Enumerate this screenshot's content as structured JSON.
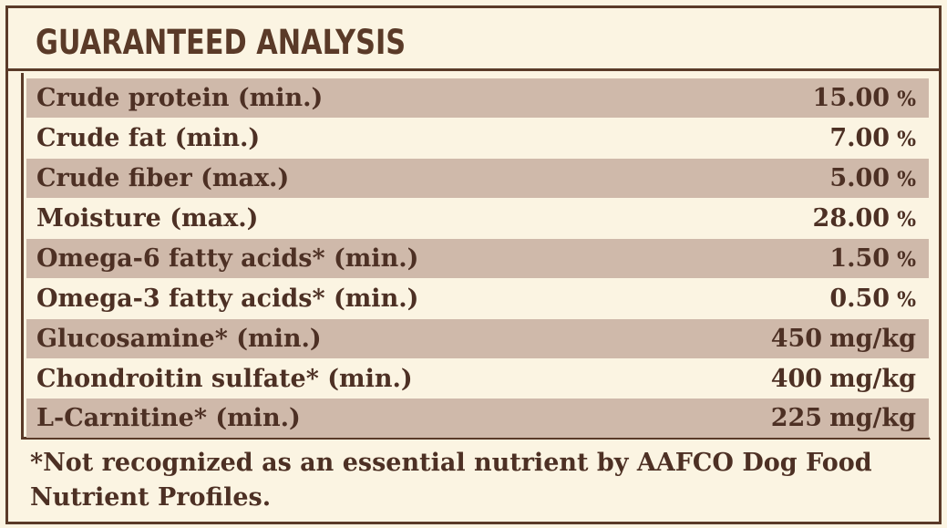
{
  "title": "GUARANTEED ANALYSIS",
  "rows": [
    {
      "label": "Crude protein (min.)",
      "value": "15.00",
      "unit": "%"
    },
    {
      "label": "Crude fat (min.)",
      "value": "7.00",
      "unit": "%"
    },
    {
      "label": "Crude fiber (max.)",
      "value": "5.00",
      "unit": "%"
    },
    {
      "label": "Moisture (max.)",
      "value": "28.00",
      "unit": "%"
    },
    {
      "label": "Omega-6 fatty acids* (min.)",
      "value": "1.50",
      "unit": "%"
    },
    {
      "label": "Omega-3 fatty acids* (min.)",
      "value": "0.50",
      "unit": "%"
    },
    {
      "label": "Glucosamine* (min.)",
      "value": "450",
      "unit": "mg/kg"
    },
    {
      "label": "Chondroitin sulfate* (min.)",
      "value": "400",
      "unit": "mg/kg"
    },
    {
      "label": "L-Carnitine* (min.)",
      "value": "225",
      "unit": "mg/kg"
    }
  ],
  "footnote": "*Not recognized as an essential nutrient by AAFCO Dog Food Nutrient Profiles.",
  "colors": {
    "background": "#fbf4e2",
    "accent": "#5a3a28",
    "row_shade": "#cfb9aa",
    "text": "#4d3024"
  }
}
